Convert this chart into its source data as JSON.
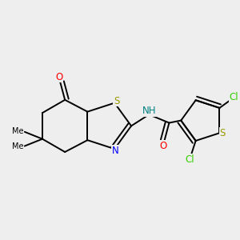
{
  "bg_color": "#eeeeee",
  "colors": {
    "C": "#000000",
    "S": "#999900",
    "N": "#0000ff",
    "NH": "#008080",
    "O": "#ff0000",
    "Cl": "#33cc00"
  },
  "figsize": [
    3.0,
    3.0
  ],
  "dpi": 100
}
